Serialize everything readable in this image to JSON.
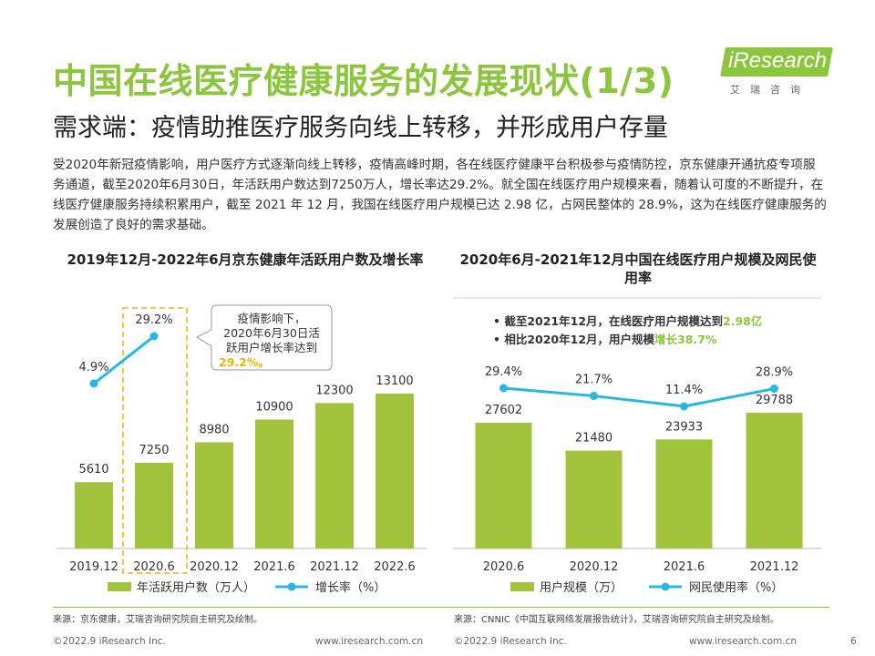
{
  "header": {
    "title": "中国在线医疗健康服务的发展现状(1/3)",
    "subtitle": "需求端：疫情助推医疗服务向线上转移，并形成用户存量"
  },
  "logo": {
    "text": "iResearch",
    "cn": "艾瑞咨询"
  },
  "intro": "受2020年新冠疫情影响，用户医疗方式逐渐向线上转移，疫情高峰时期，各在线医疗健康平台积极参与疫情防控，京东健康开通抗疫专项服务通道，截至2020年6月30日，年活跃用户数达到7250万人，增长率达29.2%。就全国在线医疗用户规模来看，随着认可度的不断提升，在线医疗健康服务持续积累用户，截至 2021 年 12 月，我国在线医疗用户规模已达 2.98 亿，占网民整体的 28.9%，这为在线医疗健康服务的发展创造了良好的需求基础。",
  "chart_data": [
    {
      "type": "bar",
      "title": "2019年12月-2022年6月京东健康年活跃用户数及增长率",
      "categories": [
        "2019.12",
        "2020.6",
        "2020.12",
        "2021.6",
        "2021.12",
        "2022.6"
      ],
      "series": [
        {
          "name": "年活跃用户数（万人）",
          "type": "bar",
          "values": [
            5610,
            7250,
            8980,
            10900,
            12300,
            13100
          ],
          "color": "#a2c43c"
        },
        {
          "name": "增长率（%）",
          "type": "line",
          "values": [
            4.9,
            29.2,
            null,
            null,
            null,
            null
          ],
          "labels": [
            "4.9%",
            "29.2%"
          ],
          "color": "#29b6e0"
        }
      ],
      "callout": {
        "text": [
          "疫情影响下，",
          "2020年6月30日活",
          "跃用户增长率达到"
        ],
        "highlight": "29.2%。"
      },
      "legend": "bottom"
    },
    {
      "type": "bar",
      "title": "2020年6月-2021年12月中国在线医疗用户规模及网民使用率",
      "categories": [
        "2020.6",
        "2020.12",
        "2021.6",
        "2021.12"
      ],
      "series": [
        {
          "name": "用户规模（万）",
          "type": "bar",
          "values": [
            27602,
            21480,
            23933,
            29788
          ],
          "color": "#a2c43c"
        },
        {
          "name": "网民使用率（%）",
          "type": "line",
          "values": [
            29.4,
            21.7,
            11.4,
            28.9
          ],
          "labels": [
            "29.4%",
            "21.7%",
            "11.4%",
            "28.9%"
          ],
          "color": "#29b6e0"
        }
      ],
      "notes": [
        {
          "prefix": "截至2021年12月，在线医疗用户规模达到",
          "highlight": "2.98亿"
        },
        {
          "prefix": "相比2020年12月，用户规模",
          "highlight": "增长38.7%"
        }
      ],
      "legend": "bottom"
    }
  ],
  "sources": {
    "left": "来源：京东健康，艾瑞咨询研究院自主研究及绘制。",
    "right": "来源：CNNIC《中国互联网络发展报告统计》，艾瑞咨询研究院自主研究及绘制。"
  },
  "footer": {
    "copyright_left": "©2022.9 iResearch Inc.",
    "url_left": "www.iresearch.com.cn",
    "copyright_right": "©2022.9 iResearch Inc.",
    "url_right": "www.iresearch.com.cn",
    "page": "6"
  },
  "colors": {
    "accent": "#8cc63e",
    "bar": "#a2c43c",
    "line": "#29b6e0",
    "highlight": "#f0b400",
    "highlight_green": "#8cc63e"
  }
}
